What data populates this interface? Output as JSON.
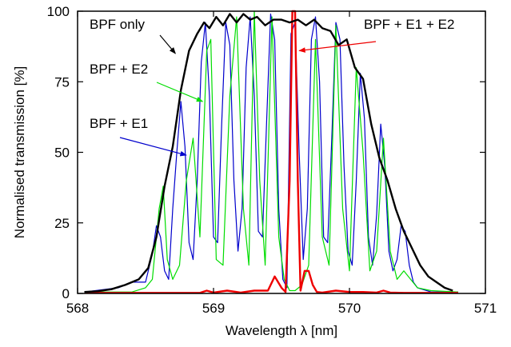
{
  "chart_data": {
    "type": "line",
    "xlabel": "Wavelength λ [nm]",
    "ylabel": "Normalised transmission [%]",
    "xlim": [
      568,
      571
    ],
    "ylim": [
      0,
      100
    ],
    "xticks": [
      568,
      569,
      570,
      571
    ],
    "yticks": [
      0,
      25,
      50,
      75,
      100
    ],
    "series": [
      {
        "name": "BPF + E1",
        "color": "#0000cc",
        "x": [
          568.05,
          568.3,
          568.4,
          568.5,
          568.55,
          568.58,
          568.61,
          568.64,
          568.67,
          568.7,
          568.73,
          568.76,
          568.79,
          568.82,
          568.85,
          568.88,
          568.91,
          568.94,
          568.97,
          569.0,
          569.03,
          569.06,
          569.09,
          569.12,
          569.15,
          569.18,
          569.21,
          569.24,
          569.27,
          569.3,
          569.33,
          569.36,
          569.39,
          569.42,
          569.45,
          569.48,
          569.51,
          569.54,
          569.57,
          569.6,
          569.63,
          569.66,
          569.69,
          569.72,
          569.75,
          569.78,
          569.81,
          569.84,
          569.87,
          569.9,
          569.93,
          569.96,
          569.99,
          570.02,
          570.05,
          570.08,
          570.11,
          570.14,
          570.17,
          570.2,
          570.23,
          570.26,
          570.29,
          570.32,
          570.35,
          570.38,
          570.41,
          570.44,
          570.47,
          570.5,
          570.6,
          570.8
        ],
        "y": [
          0.5,
          2,
          4,
          4,
          14,
          24,
          20,
          8,
          5,
          30,
          50,
          68,
          52,
          18,
          12,
          40,
          82,
          96,
          70,
          20,
          18,
          60,
          96,
          88,
          40,
          15,
          30,
          80,
          98,
          70,
          22,
          20,
          60,
          99,
          90,
          30,
          5,
          2,
          92,
          96,
          50,
          12,
          30,
          90,
          98,
          75,
          20,
          18,
          55,
          96,
          90,
          45,
          15,
          10,
          40,
          78,
          62,
          20,
          10,
          28,
          60,
          45,
          15,
          8,
          12,
          24,
          22,
          10,
          4,
          2,
          0.5,
          0.5
        ]
      },
      {
        "name": "BPF + E2",
        "color": "#00dd00",
        "x": [
          568.05,
          568.4,
          568.5,
          568.55,
          568.6,
          568.63,
          568.66,
          568.7,
          568.75,
          568.8,
          568.85,
          568.9,
          568.95,
          568.98,
          569.02,
          569.07,
          569.12,
          569.17,
          569.22,
          569.26,
          569.3,
          569.34,
          569.38,
          569.43,
          569.48,
          569.52,
          569.56,
          569.6,
          569.65,
          569.7,
          569.75,
          569.8,
          569.85,
          569.9,
          569.95,
          570.0,
          570.05,
          570.1,
          570.15,
          570.2,
          570.25,
          570.3,
          570.35,
          570.4,
          570.45,
          570.5,
          570.6,
          570.8
        ],
        "y": [
          0.5,
          0.5,
          2,
          5,
          30,
          38,
          12,
          5,
          10,
          40,
          55,
          20,
          86,
          90,
          12,
          10,
          70,
          98,
          30,
          10,
          100,
          40,
          10,
          98,
          20,
          5,
          1,
          1,
          3,
          10,
          90,
          20,
          10,
          95,
          30,
          8,
          80,
          50,
          8,
          15,
          55,
          15,
          5,
          8,
          5,
          2,
          1,
          0.5
        ]
      },
      {
        "name": "BPF + E1 + E2",
        "color": "#ee0000",
        "x": [
          568.05,
          568.9,
          568.95,
          569.0,
          569.1,
          569.2,
          569.3,
          569.4,
          569.45,
          569.5,
          569.53,
          569.56,
          569.58,
          569.6,
          569.62,
          569.64,
          569.67,
          569.7,
          569.73,
          569.76,
          569.8,
          569.9,
          570.0,
          570.1,
          570.2,
          570.25,
          570.3,
          570.4,
          570.5,
          570.8
        ],
        "y": [
          0.2,
          0.2,
          1,
          0.3,
          1,
          0.3,
          1,
          1,
          6,
          2,
          0.5,
          40,
          100,
          100,
          40,
          1,
          8,
          8,
          3,
          0.5,
          0.3,
          1,
          0.5,
          0.5,
          0.3,
          1,
          0.3,
          0.2,
          0.2,
          0.2
        ]
      },
      {
        "name": "BPF only",
        "color": "#000000",
        "x": [
          568.05,
          568.15,
          568.25,
          568.35,
          568.45,
          568.52,
          568.58,
          568.64,
          568.7,
          568.76,
          568.82,
          568.88,
          568.93,
          568.97,
          569.02,
          569.07,
          569.12,
          569.17,
          569.22,
          569.27,
          569.32,
          569.38,
          569.44,
          569.5,
          569.56,
          569.62,
          569.68,
          569.74,
          569.8,
          569.86,
          569.92,
          569.98,
          570.04,
          570.1,
          570.16,
          570.22,
          570.28,
          570.34,
          570.4,
          570.46,
          570.52,
          570.58,
          570.64,
          570.7,
          570.76
        ],
        "y": [
          0.5,
          0.8,
          1.5,
          3,
          5,
          9,
          20,
          38,
          52,
          72,
          86,
          92,
          96,
          94,
          98,
          95,
          99,
          96,
          99,
          97,
          98,
          95,
          97,
          97,
          96,
          97,
          95,
          97,
          94,
          93,
          88,
          90,
          80,
          76,
          60,
          48,
          40,
          30,
          22,
          16,
          10,
          6,
          4,
          2,
          1
        ]
      }
    ],
    "annotations": [
      {
        "text": "BPF only",
        "target": [
          568.72,
          85
        ]
      },
      {
        "text": "BPF + E2",
        "target": [
          568.92,
          68
        ]
      },
      {
        "text": "BPF + E1",
        "target": [
          568.8,
          49
        ]
      },
      {
        "text": "BPF + E1 + E2",
        "target": [
          569.63,
          86
        ]
      }
    ]
  }
}
